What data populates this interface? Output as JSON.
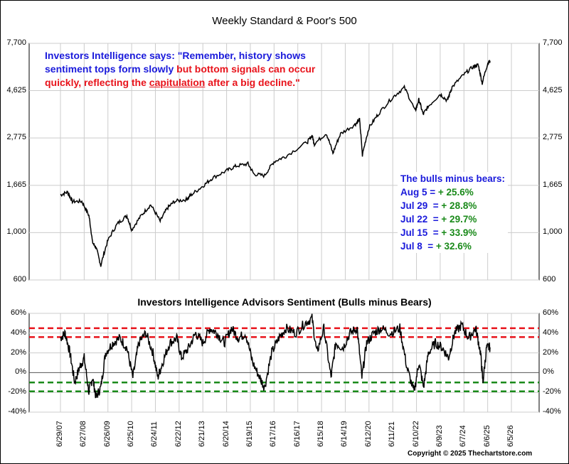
{
  "chart_data": [
    {
      "type": "line",
      "title": "Weekly Standard & Poor's 500",
      "yscale": "log",
      "ylim": [
        600,
        7700
      ],
      "yticks": [
        "7,700",
        "4,625",
        "2,775",
        "1,665",
        "1,000",
        "600"
      ],
      "ytick_values": [
        7700,
        4625,
        2775,
        1665,
        1000,
        600
      ],
      "x": [
        2007.5,
        2007.8,
        2008.0,
        2008.4,
        2008.7,
        2008.85,
        2009.0,
        2009.2,
        2009.5,
        2009.9,
        2010.3,
        2010.5,
        2010.9,
        2011.3,
        2011.7,
        2012.0,
        2012.3,
        2012.8,
        2013.0,
        2013.5,
        2013.9,
        2014.5,
        2014.9,
        2015.4,
        2015.65,
        2016.1,
        2016.5,
        2017.0,
        2017.9,
        2018.1,
        2018.2,
        2018.7,
        2018.98,
        2019.3,
        2019.9,
        2020.1,
        2020.22,
        2020.5,
        2020.9,
        2021.5,
        2021.99,
        2022.45,
        2022.6,
        2022.78,
        2023.0,
        2023.5,
        2023.8,
        2024.0,
        2024.5,
        2024.9,
        2025.1,
        2025.27,
        2025.5,
        2025.6
      ],
      "values": [
        1500,
        1550,
        1400,
        1400,
        1200,
        900,
        850,
        700,
        920,
        1100,
        1200,
        1030,
        1200,
        1350,
        1130,
        1300,
        1400,
        1430,
        1500,
        1650,
        1800,
        1950,
        2050,
        2100,
        1880,
        1850,
        2150,
        2280,
        2650,
        2850,
        2600,
        2920,
        2350,
        2900,
        3200,
        3380,
        2300,
        3100,
        3600,
        4300,
        4780,
        3700,
        4200,
        3580,
        3900,
        4450,
        4150,
        4800,
        5500,
        6000,
        6100,
        5000,
        6200,
        6380
      ]
    },
    {
      "type": "line",
      "title": "Investors Intelligence Advisors Sentiment (Bulls minus Bears)",
      "ylim": [
        -40,
        60
      ],
      "yticks": [
        "60%",
        "40%",
        "20%",
        "0%",
        "-20%",
        "-40%"
      ],
      "ytick_values": [
        60,
        40,
        20,
        0,
        -20,
        -40
      ],
      "reference_lines": {
        "red": [
          45,
          36
        ],
        "green": [
          -10,
          -19
        ]
      },
      "x": [
        2007.5,
        2007.7,
        2007.9,
        2008.1,
        2008.3,
        2008.5,
        2008.7,
        2008.85,
        2009.0,
        2009.2,
        2009.4,
        2009.7,
        2010.0,
        2010.3,
        2010.55,
        2010.8,
        2011.1,
        2011.4,
        2011.6,
        2011.8,
        2012.1,
        2012.4,
        2012.6,
        2012.9,
        2013.2,
        2013.5,
        2013.8,
        2014.1,
        2014.4,
        2014.7,
        2015.0,
        2015.3,
        2015.6,
        2015.9,
        2016.1,
        2016.4,
        2016.7,
        2017.0,
        2017.4,
        2017.8,
        2018.1,
        2018.3,
        2018.6,
        2018.9,
        2019.1,
        2019.4,
        2019.7,
        2020.0,
        2020.2,
        2020.4,
        2020.7,
        2021.0,
        2021.4,
        2021.8,
        2022.1,
        2022.4,
        2022.6,
        2022.8,
        2023.0,
        2023.3,
        2023.6,
        2023.85,
        2024.1,
        2024.4,
        2024.7,
        2025.0,
        2025.2,
        2025.3,
        2025.45,
        2025.6
      ],
      "values": [
        35,
        40,
        20,
        -10,
        5,
        15,
        -20,
        -5,
        -25,
        -15,
        20,
        30,
        35,
        25,
        -5,
        30,
        40,
        20,
        -5,
        10,
        30,
        35,
        15,
        25,
        40,
        30,
        45,
        40,
        30,
        45,
        35,
        40,
        10,
        -5,
        -15,
        20,
        35,
        45,
        40,
        50,
        55,
        20,
        45,
        -5,
        30,
        25,
        40,
        45,
        -5,
        30,
        40,
        45,
        40,
        45,
        5,
        -20,
        10,
        -15,
        20,
        30,
        25,
        15,
        40,
        48,
        35,
        45,
        20,
        -10,
        25,
        25.6
      ]
    }
  ],
  "bulls_minus_bears": {
    "title": "The bulls minus bears:",
    "rows": [
      {
        "date": "Aug 5 = ",
        "value": "+ 25.6%"
      },
      {
        "date": "Jul 29  = ",
        "value": "+ 28.8%"
      },
      {
        "date": "Jul 22  = ",
        "value": "+ 29.7%"
      },
      {
        "date": "Jul 15  = ",
        "value": "+ 33.9%"
      },
      {
        "date": "Jul 8  = ",
        "value": "+ 32.6%"
      }
    ]
  },
  "quote": {
    "blue": "Investors Intelligence says: \"Remember, history shows sentiment tops form slowly ",
    "red1": "but bottom signals can occur quickly, reflecting the ",
    "underlined": "capitulation",
    "red2": " after a big decline.\""
  },
  "x_labels": [
    "6/29/07",
    "6/27/08",
    "6/26/09",
    "6/25/10",
    "6/24/11",
    "6/22/12",
    "6/21/13",
    "6/20/14",
    "6/19/15",
    "6/17/16",
    "6/16/17",
    "6/15/18",
    "6/14/19",
    "6/12/20",
    "6/11/21",
    "6/10/22",
    "6/9/23",
    "6/7/24",
    "6/6/25",
    "6/5/26"
  ],
  "copyright": "Copyright © 2025 Thechartstore.com",
  "colors": {
    "quote_blue": "#1a1adb",
    "red": "#e8131b",
    "green": "#1a8a1a"
  }
}
